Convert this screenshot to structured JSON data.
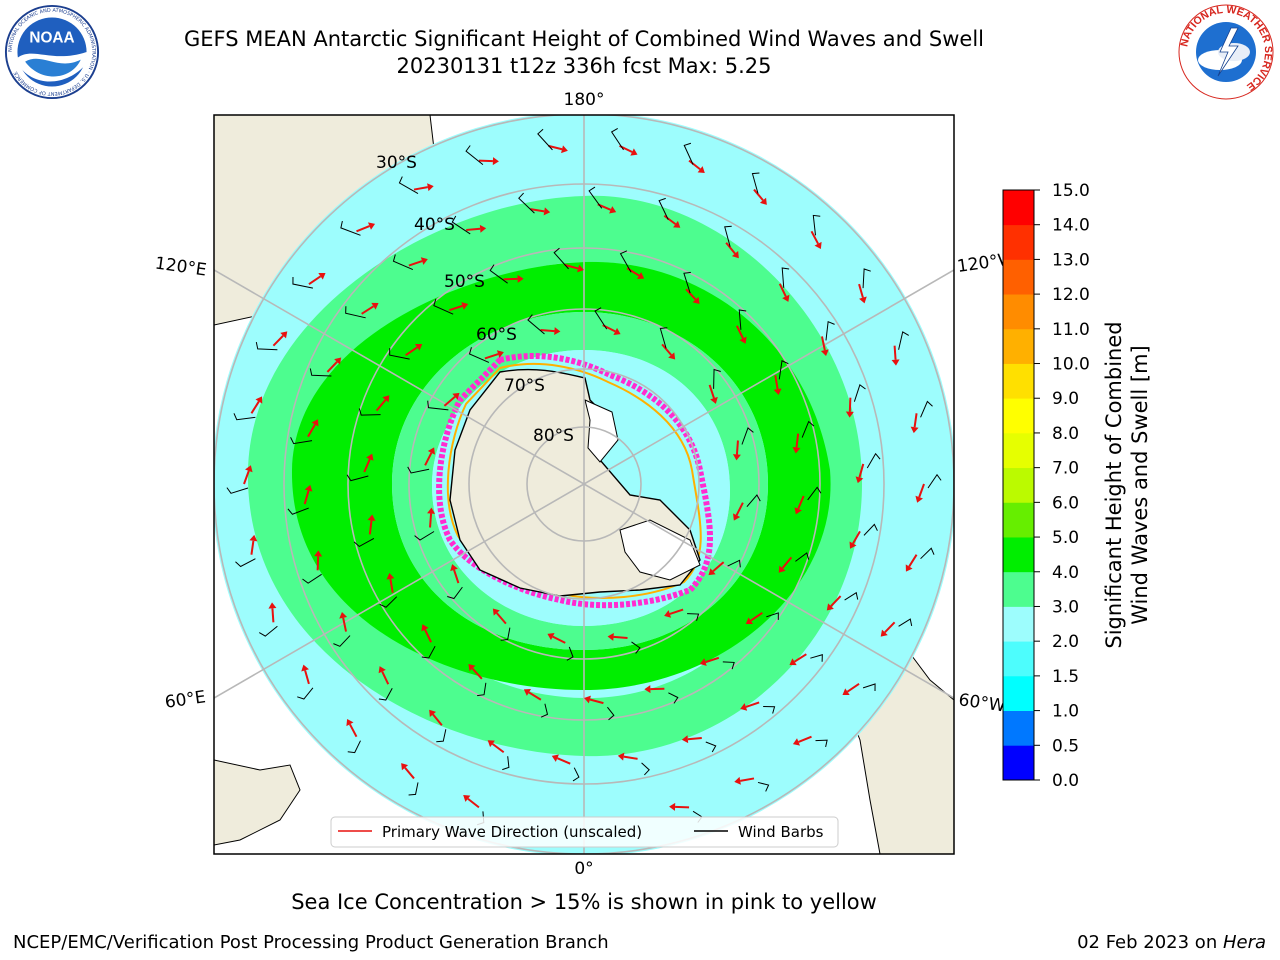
{
  "header": {
    "title_line1": "GEFS MEAN Antarctic Significant Height of Combined Wind Waves and Swell",
    "title_line2": "20230131 t12z 336h fcst   Max: 5.25"
  },
  "logos": {
    "left": {
      "label": "NOAA",
      "ring_text": "NATIONAL OCEANIC AND ATMOSPHERIC ADMINISTRATION · U.S. DEPARTMENT OF COMMERCE"
    },
    "right": {
      "ring_text": "NATIONAL WEATHER SERVICE"
    }
  },
  "map": {
    "projection": "south-polar-stereographic",
    "longitude_labels": {
      "top": "180°",
      "bottom": "0°",
      "upper_left": "120°E",
      "upper_right": "120°W",
      "lower_left": "60°E",
      "lower_right": "60°W"
    },
    "latitude_labels": [
      "30°S",
      "40°S",
      "50°S",
      "60°S",
      "70°S",
      "80°S"
    ],
    "legend": {
      "primary_wave_direction": "Primary Wave Direction (unscaled)",
      "wind_barbs": "Wind Barbs"
    },
    "colors": {
      "land": "#efecdc",
      "ice": "#ffffff",
      "ocean_low": "#9dfdfd",
      "ocean_mid": "#4dfd8f",
      "ocean_high": "#00ee00",
      "arrow": "#e8110f",
      "graticule": "#b8b8b8"
    }
  },
  "colorbar": {
    "title_line1": "Significant Height of Combined",
    "title_line2": "Wind Waves and Swell [m]",
    "ticks": [
      "0.0",
      "0.5",
      "1.0",
      "1.5",
      "2.0",
      "3.0",
      "4.0",
      "5.0",
      "6.0",
      "7.0",
      "8.0",
      "9.0",
      "10.0",
      "11.0",
      "12.0",
      "13.0",
      "14.0",
      "15.0"
    ],
    "colors": [
      "#0000ff",
      "#0078ff",
      "#00ffff",
      "#4dfdfd",
      "#9dfdfd",
      "#4dfd8f",
      "#00ee00",
      "#66ee00",
      "#bbfa00",
      "#e6ff00",
      "#ffff00",
      "#ffe000",
      "#ffb000",
      "#ff8c00",
      "#ff6000",
      "#ff3000",
      "#ff0000"
    ]
  },
  "notes": {
    "sea_ice": "Sea Ice Concentration > 15% is shown in pink to yellow"
  },
  "footer": {
    "left": "NCEP/EMC/Verification Post Processing Product Generation Branch",
    "date": "02 Feb 2023 on ",
    "machine": "Hera"
  }
}
